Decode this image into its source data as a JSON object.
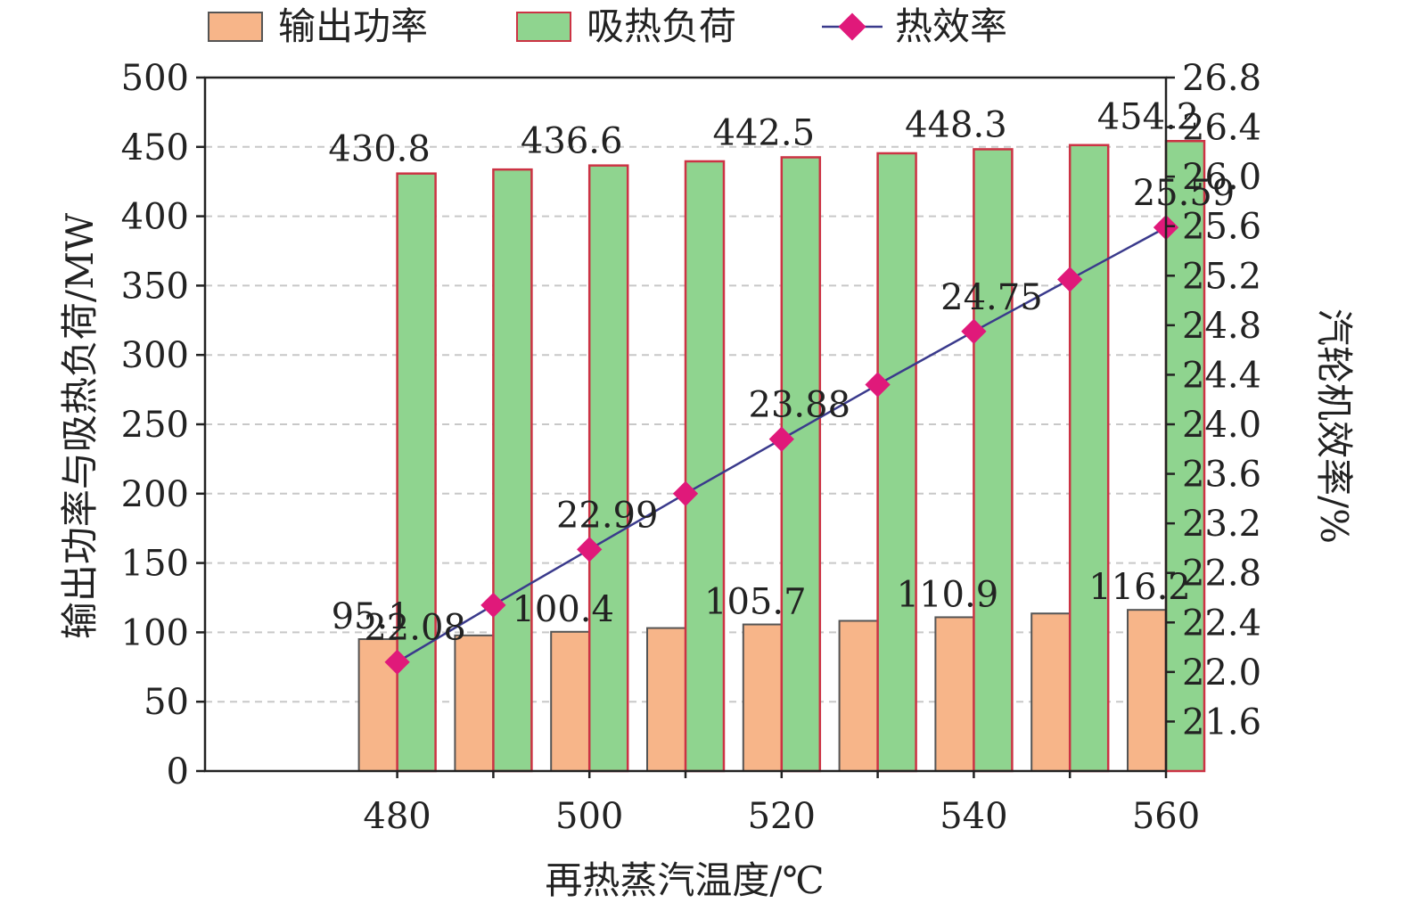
{
  "chart_data": {
    "type": "bar",
    "xlabel": "再热蒸汽温度/℃",
    "ylabel": "输出功率与吸热负荷/MW",
    "y2label": "汽轮机效率/%",
    "x": [
      480,
      490,
      500,
      510,
      520,
      530,
      540,
      550,
      560
    ],
    "x_tick_labels": [
      "480",
      "500",
      "520",
      "540",
      "560"
    ],
    "x_ticks": [
      480,
      500,
      520,
      540,
      560
    ],
    "xlim": [
      460,
      560
    ],
    "ylim": [
      0,
      500
    ],
    "y_ticks": [
      0,
      50,
      100,
      150,
      200,
      250,
      300,
      350,
      400,
      450,
      500
    ],
    "y_tick_labels": [
      "0",
      "50",
      "100",
      "150",
      "200",
      "250",
      "300",
      "350",
      "400",
      "450",
      "500"
    ],
    "y2lim": [
      21.2,
      26.8
    ],
    "y2_ticks": [
      21.6,
      22.0,
      22.4,
      22.8,
      23.2,
      23.6,
      24.0,
      24.4,
      24.8,
      25.2,
      25.6,
      26.0,
      26.4,
      26.8
    ],
    "y2_tick_labels": [
      "21.6",
      "22.0",
      "22.4",
      "22.8",
      "23.2",
      "23.6",
      "24.0",
      "24.4",
      "24.8",
      "25.2",
      "25.6",
      "26.0",
      "26.4",
      "26.8"
    ],
    "grid": "horizontal-dashed",
    "legend_position": "top",
    "series": [
      {
        "name": "输出功率",
        "kind": "bar",
        "axis": "left",
        "color": "#f7b589",
        "edge": "#555555",
        "values": [
          95.1,
          97.8,
          100.4,
          103.1,
          105.7,
          108.3,
          110.9,
          113.6,
          116.2
        ],
        "labels": [
          "95.1",
          "",
          "100.4",
          "",
          "105.7",
          "",
          "110.9",
          "",
          "116.2"
        ]
      },
      {
        "name": "吸热负荷",
        "kind": "bar",
        "axis": "left",
        "color": "#8fd48f",
        "edge": "#cc3344",
        "values": [
          430.8,
          433.7,
          436.6,
          439.6,
          442.5,
          445.4,
          448.3,
          451.3,
          454.2
        ],
        "labels": [
          "430.8",
          "",
          "436.6",
          "",
          "442.5",
          "",
          "448.3",
          "",
          "454.2"
        ]
      },
      {
        "name": "热效率",
        "kind": "line",
        "axis": "right",
        "color": "#e0197a",
        "line_color": "#3a3a8c",
        "values": [
          22.08,
          22.54,
          22.99,
          23.44,
          23.88,
          24.32,
          24.75,
          25.17,
          25.59
        ],
        "labels": [
          "22.08",
          "",
          "22.99",
          "",
          "23.88",
          "",
          "24.75",
          "",
          "25.59"
        ]
      }
    ]
  }
}
